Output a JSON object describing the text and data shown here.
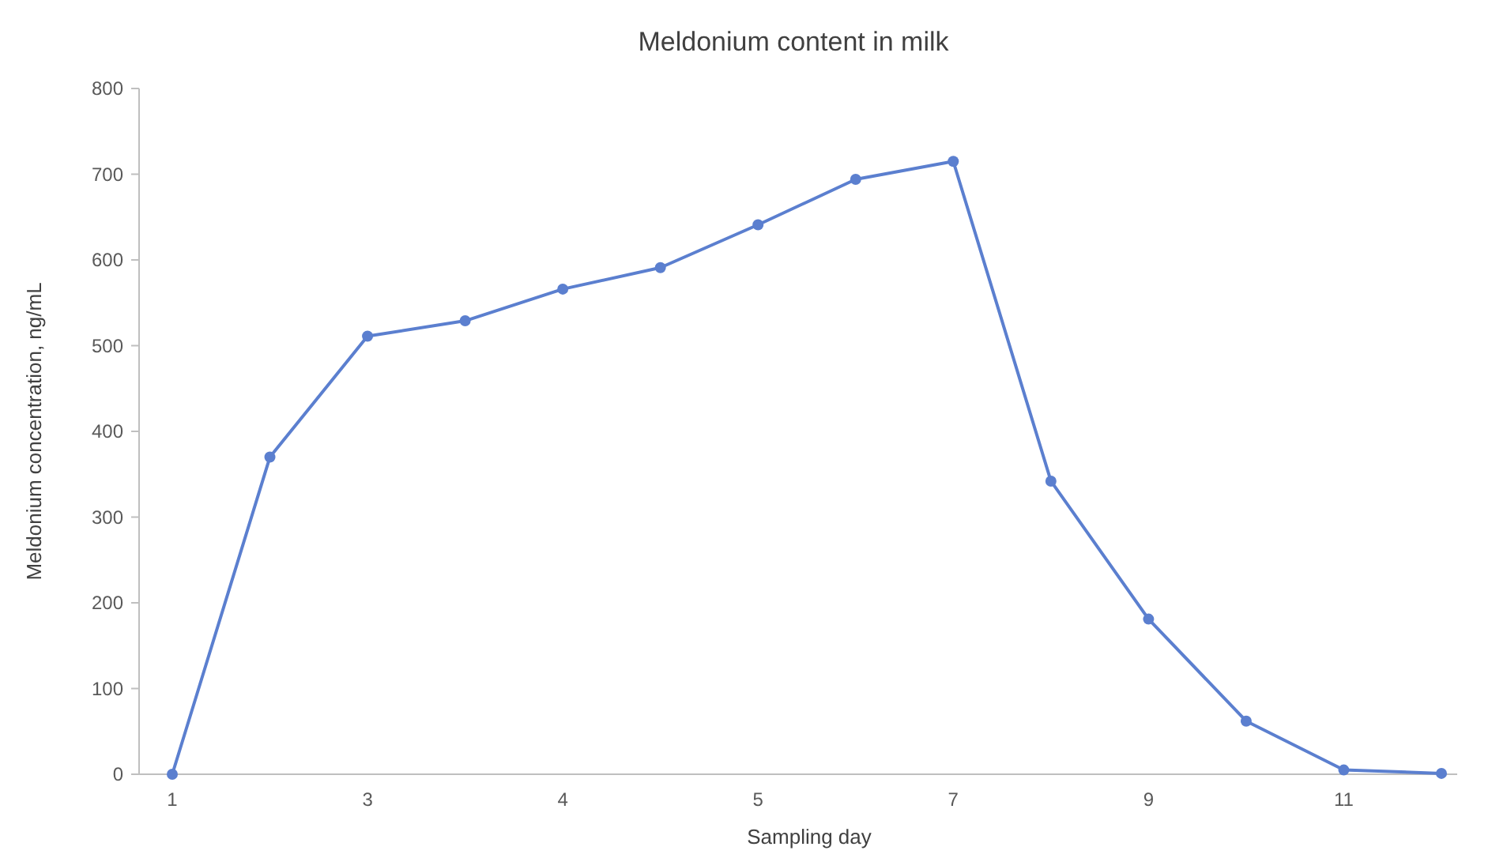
{
  "chart_data": {
    "type": "line",
    "title": "Meldonium content in milk",
    "xlabel": "Sampling day",
    "ylabel": "Meldonium concentration, ng/mL",
    "categories": [
      "1",
      null,
      "3",
      null,
      "4",
      null,
      "5",
      null,
      "7",
      null,
      "9",
      null,
      "11",
      null
    ],
    "series": [
      {
        "color": "#5b7fcf",
        "values": [
          0,
          370,
          511,
          529,
          566,
          591,
          641,
          694,
          715,
          342,
          181,
          62,
          5,
          1
        ]
      }
    ],
    "ylim": [
      0,
      800
    ],
    "yticks": [
      0,
      100,
      200,
      300,
      400,
      500,
      600,
      700,
      800
    ],
    "grid": false,
    "marker": "circle",
    "line_style": "solid"
  }
}
